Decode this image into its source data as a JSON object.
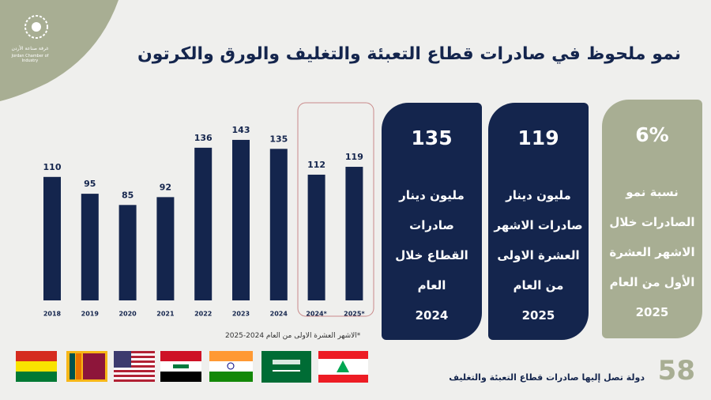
{
  "logo": {
    "arabic": "غرفة صناعة الأردن",
    "english": "Jordan Chamber of Industry"
  },
  "title": "نمو ملحوظ في صادرات قطاع التعبئة والتغليف والورق والكرتون",
  "chart_data": {
    "type": "bar",
    "categories": [
      "2018",
      "2019",
      "2020",
      "2021",
      "2022",
      "2023",
      "2024",
      "2024*",
      "2025*"
    ],
    "values": [
      110,
      95,
      85,
      92,
      136,
      143,
      135,
      112,
      119
    ],
    "color": "#14254d"
  },
  "footnote": "*الاشهر العشرة الاولى من العام 2024-2025",
  "cards": [
    {
      "number": "135",
      "lines": [
        "مليون دينار",
        "صادرات",
        "القطاع خلال",
        "العام",
        "2024"
      ]
    },
    {
      "number": "119",
      "lines": [
        "مليون دينار",
        "صادرات الاشهر",
        "العشرة الاولى",
        "من العام",
        "2025"
      ]
    },
    {
      "number": "6%",
      "lines": [
        "نسبة نمو",
        "الصادرات خلال",
        "الاشهر العشرة",
        "الأول من العام",
        "2025"
      ]
    }
  ],
  "footer": {
    "count": "58",
    "label": "دولة تصل إليها صادرات قطاع التعبئة والتغليف"
  }
}
